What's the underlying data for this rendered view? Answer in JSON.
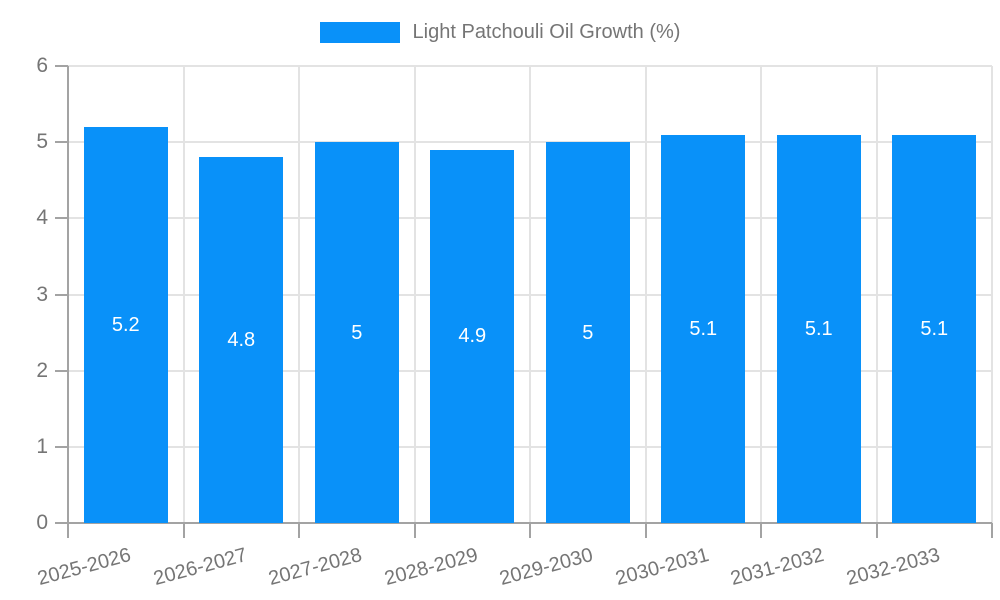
{
  "chart_data": {
    "type": "bar",
    "title": "",
    "legend": {
      "label": "Light Patchouli Oil Growth (%)",
      "position": "top"
    },
    "categories": [
      "2025-2026",
      "2026-2027",
      "2027-2028",
      "2028-2029",
      "2029-2030",
      "2030-2031",
      "2031-2032",
      "2032-2033"
    ],
    "values": [
      5.2,
      4.8,
      5,
      4.9,
      5,
      5.1,
      5.1,
      5.1
    ],
    "value_labels": [
      "5.2",
      "4.8",
      "5",
      "4.9",
      "5",
      "5.1",
      "5.1",
      "5.1"
    ],
    "xlabel": "",
    "ylabel": "",
    "ylim": [
      0,
      6
    ],
    "y_ticks": [
      "0",
      "1",
      "2",
      "3",
      "4",
      "5",
      "6"
    ],
    "grid": "on",
    "x_tick_rotation_deg": -15,
    "colors": {
      "bar": "#0991F9",
      "grid": "#E3E3E3",
      "axis": "#A3A3A3",
      "tick_text": "#757575",
      "legend_text": "#757575",
      "value_text": "#FFFFFF",
      "background": "#FFFFFF"
    }
  }
}
